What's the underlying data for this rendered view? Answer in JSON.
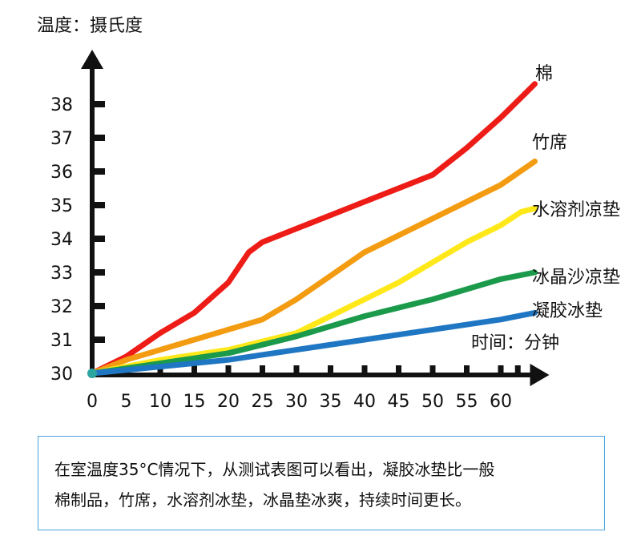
{
  "chart_data": {
    "type": "line",
    "ylabel": "温度：摄氏度",
    "xlabel": "时间：分钟",
    "xlim": [
      0,
      65
    ],
    "ylim": [
      29.8,
      39.5
    ],
    "x_ticks": [
      0,
      5,
      10,
      15,
      20,
      25,
      30,
      35,
      40,
      45,
      50,
      55,
      60
    ],
    "y_ticks": [
      30,
      31,
      32,
      33,
      34,
      35,
      36,
      37,
      38
    ],
    "series": [
      {
        "name": "棉",
        "color": "#ee1c17",
        "points": [
          [
            0,
            30
          ],
          [
            5,
            30.5
          ],
          [
            10,
            31.2
          ],
          [
            15,
            31.8
          ],
          [
            20,
            32.7
          ],
          [
            23,
            33.6
          ],
          [
            25,
            33.9
          ],
          [
            30,
            34.3
          ],
          [
            35,
            34.7
          ],
          [
            40,
            35.1
          ],
          [
            45,
            35.5
          ],
          [
            50,
            35.9
          ],
          [
            55,
            36.7
          ],
          [
            60,
            37.6
          ],
          [
            63,
            38.2
          ],
          [
            65,
            38.6
          ]
        ]
      },
      {
        "name": "竹席",
        "color": "#f39c12",
        "points": [
          [
            0,
            30
          ],
          [
            5,
            30.4
          ],
          [
            10,
            30.7
          ],
          [
            15,
            31
          ],
          [
            20,
            31.3
          ],
          [
            25,
            31.6
          ],
          [
            30,
            32.2
          ],
          [
            35,
            32.9
          ],
          [
            40,
            33.6
          ],
          [
            45,
            34.1
          ],
          [
            50,
            34.6
          ],
          [
            55,
            35.1
          ],
          [
            60,
            35.6
          ],
          [
            65,
            36.3
          ]
        ]
      },
      {
        "name": "水溶剂凉垫",
        "color": "#ffe81a",
        "points": [
          [
            0,
            30
          ],
          [
            10,
            30.4
          ],
          [
            20,
            30.7
          ],
          [
            30,
            31.2
          ],
          [
            35,
            31.7
          ],
          [
            40,
            32.2
          ],
          [
            45,
            32.7
          ],
          [
            50,
            33.3
          ],
          [
            55,
            33.9
          ],
          [
            60,
            34.4
          ],
          [
            63,
            34.8
          ],
          [
            65,
            34.9
          ]
        ]
      },
      {
        "name": "冰晶沙凉垫",
        "color": "#1a9a4a",
        "points": [
          [
            0,
            30
          ],
          [
            10,
            30.3
          ],
          [
            20,
            30.6
          ],
          [
            30,
            31.1
          ],
          [
            40,
            31.7
          ],
          [
            50,
            32.2
          ],
          [
            60,
            32.8
          ],
          [
            65,
            33
          ]
        ]
      },
      {
        "name": "凝胶冰垫",
        "color": "#1f77c4",
        "points": [
          [
            0,
            30
          ],
          [
            10,
            30.2
          ],
          [
            20,
            30.4
          ],
          [
            30,
            30.7
          ],
          [
            40,
            31
          ],
          [
            50,
            31.3
          ],
          [
            60,
            31.6
          ],
          [
            65,
            31.8
          ]
        ]
      }
    ]
  },
  "note": {
    "line1": "在室温度35°C情况下，从测试表图可以看出，凝胶冰垫比一般",
    "line2": "棉制品，竹席，水溶剂冰垫，冰晶垫冰爽，持续时间更长。"
  }
}
